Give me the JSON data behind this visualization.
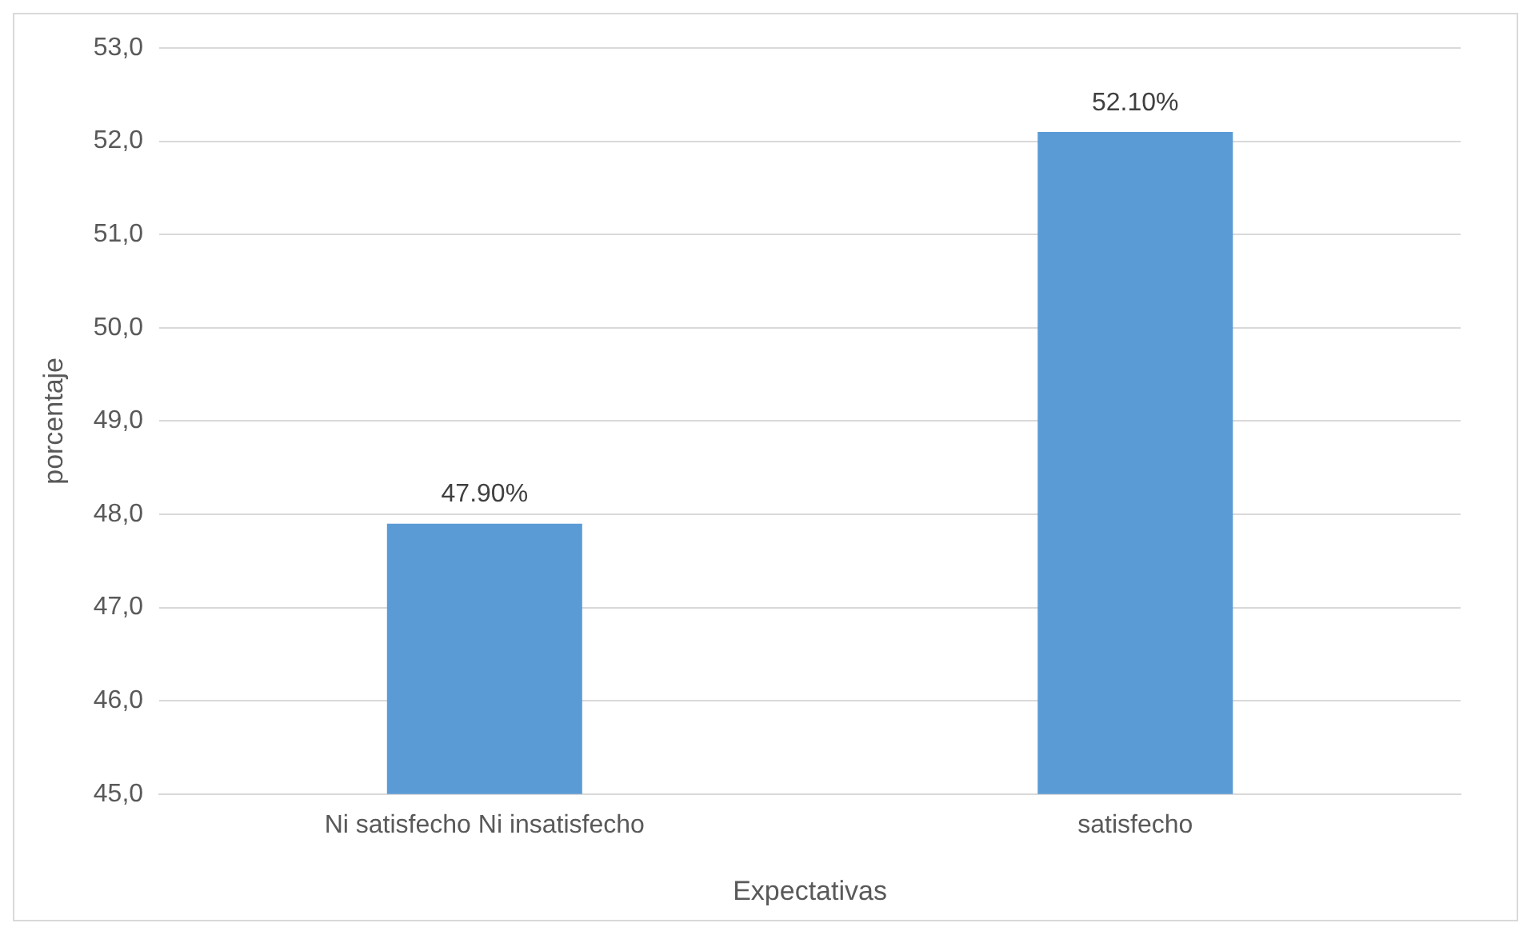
{
  "chart_data": {
    "type": "bar",
    "categories": [
      "Ni satisfecho Ni insatisfecho",
      "satisfecho"
    ],
    "values": [
      47.9,
      52.1
    ],
    "value_labels": [
      "47.90%",
      "52.10%"
    ],
    "color": "#5b9bd5",
    "xlabel": "Expectativas",
    "ylabel": "porcentaje",
    "ylim": [
      45,
      53
    ],
    "yticks": [
      {
        "value": 45,
        "label": "45,0"
      },
      {
        "value": 46,
        "label": "46,0"
      },
      {
        "value": 47,
        "label": "47,0"
      },
      {
        "value": 48,
        "label": "48,0"
      },
      {
        "value": 49,
        "label": "49,0"
      },
      {
        "value": 50,
        "label": "50,0"
      },
      {
        "value": 51,
        "label": "51,0"
      },
      {
        "value": 52,
        "label": "52,0"
      },
      {
        "value": 53,
        "label": "53,0"
      }
    ],
    "grid": "y"
  }
}
